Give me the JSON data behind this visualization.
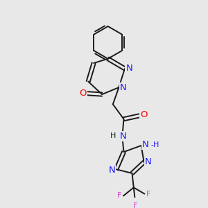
{
  "background_color": "#e8e8e8",
  "bond_color": "#1a1a1a",
  "atom_colors": {
    "N": "#1a1aff",
    "O": "#ff0000",
    "F": "#cc44cc",
    "C": "#1a1a1a"
  },
  "font_size_atom": 9.5,
  "font_size_small": 8.0,
  "lw": 1.4
}
